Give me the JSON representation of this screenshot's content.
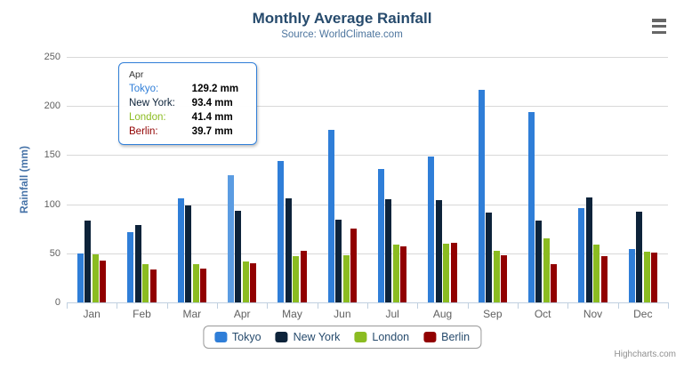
{
  "chart": {
    "title": "Monthly Average Rainfall",
    "subtitle": "Source: WorldClimate.com",
    "y_axis_title": "Rainfall (mm)",
    "credits": "Highcharts.com"
  },
  "icons": {
    "context_menu": "hamburger-menu-icon"
  },
  "colors": {
    "title": "#274b6d",
    "subtitle": "#4d759e",
    "axis_labels": "#606060",
    "axis_line": "#c0d0e0",
    "gridline": "#d8d8d8",
    "hovered_bar": "#5b9ce2",
    "tooltip_border": "#2f7ed8"
  },
  "tooltip": {
    "header": "Apr",
    "value_suffix": " mm",
    "hovered_series": "Tokyo",
    "hovered_category": "Apr",
    "rows": [
      {
        "name": "Tokyo",
        "value": "129.2"
      },
      {
        "name": "New York",
        "value": "93.4"
      },
      {
        "name": "London",
        "value": "41.4"
      },
      {
        "name": "Berlin",
        "value": "39.7"
      }
    ]
  },
  "chart_data": {
    "type": "bar",
    "title": "Monthly Average Rainfall",
    "subtitle": "Source: WorldClimate.com",
    "xlabel": "",
    "ylabel": "Rainfall (mm)",
    "ylim": [
      0,
      250
    ],
    "yticks": [
      0,
      50,
      100,
      150,
      200,
      250
    ],
    "grid": true,
    "legend_position": "bottom",
    "categories": [
      "Jan",
      "Feb",
      "Mar",
      "Apr",
      "May",
      "Jun",
      "Jul",
      "Aug",
      "Sep",
      "Oct",
      "Nov",
      "Dec"
    ],
    "series": [
      {
        "name": "Tokyo",
        "color": "#2f7ed8",
        "values": [
          49.9,
          71.5,
          106.4,
          129.2,
          144.0,
          176.0,
          135.6,
          148.5,
          216.4,
          194.1,
          95.6,
          54.4
        ]
      },
      {
        "name": "New York",
        "color": "#0d233a",
        "values": [
          83.6,
          78.8,
          98.5,
          93.4,
          106.0,
          84.5,
          105.0,
          104.3,
          91.2,
          83.5,
          106.6,
          92.3
        ]
      },
      {
        "name": "London",
        "color": "#8bbc21",
        "values": [
          48.9,
          38.8,
          39.3,
          41.4,
          47.0,
          48.3,
          59.0,
          59.6,
          52.4,
          65.2,
          59.3,
          51.2
        ]
      },
      {
        "name": "Berlin",
        "color": "#910000",
        "values": [
          42.4,
          33.2,
          34.5,
          39.7,
          52.6,
          75.5,
          57.4,
          60.4,
          47.6,
          39.1,
          46.8,
          51.1
        ]
      }
    ]
  }
}
